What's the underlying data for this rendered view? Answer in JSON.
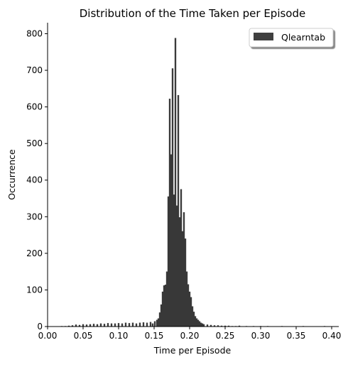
{
  "chart_data": {
    "type": "bar",
    "title": "Distribution of the Time Taken per Episode",
    "xlabel": "Time per Episode",
    "ylabel": "Occurrence",
    "xlim": [
      0.0,
      0.41
    ],
    "ylim": [
      0,
      830
    ],
    "xticks": [
      0.0,
      0.05,
      0.1,
      0.15,
      0.2,
      0.25,
      0.3,
      0.35,
      0.4
    ],
    "xtick_labels": [
      "0.00",
      "0.05",
      "0.10",
      "0.15",
      "0.20",
      "0.25",
      "0.30",
      "0.35",
      "0.40"
    ],
    "yticks": [
      0,
      100,
      200,
      300,
      400,
      500,
      600,
      700,
      800
    ],
    "ytick_labels": [
      "0",
      "100",
      "200",
      "300",
      "400",
      "500",
      "600",
      "700",
      "800"
    ],
    "grid": false,
    "legend_position": "top-right",
    "bar_color": "#404040",
    "edge_color": "#1a1a1a",
    "series": [
      {
        "name": "Qlearntab",
        "bins": [
          {
            "x": 0.02,
            "y": 1
          },
          {
            "x": 0.025,
            "y": 1
          },
          {
            "x": 0.03,
            "y": 2
          },
          {
            "x": 0.035,
            "y": 3
          },
          {
            "x": 0.04,
            "y": 5
          },
          {
            "x": 0.045,
            "y": 4
          },
          {
            "x": 0.05,
            "y": 6
          },
          {
            "x": 0.055,
            "y": 5
          },
          {
            "x": 0.06,
            "y": 6
          },
          {
            "x": 0.065,
            "y": 7
          },
          {
            "x": 0.07,
            "y": 6
          },
          {
            "x": 0.075,
            "y": 8
          },
          {
            "x": 0.08,
            "y": 7
          },
          {
            "x": 0.085,
            "y": 9
          },
          {
            "x": 0.09,
            "y": 8
          },
          {
            "x": 0.095,
            "y": 8
          },
          {
            "x": 0.1,
            "y": 9
          },
          {
            "x": 0.105,
            "y": 8
          },
          {
            "x": 0.11,
            "y": 10
          },
          {
            "x": 0.115,
            "y": 9
          },
          {
            "x": 0.12,
            "y": 10
          },
          {
            "x": 0.125,
            "y": 8
          },
          {
            "x": 0.13,
            "y": 10
          },
          {
            "x": 0.135,
            "y": 11
          },
          {
            "x": 0.14,
            "y": 10
          },
          {
            "x": 0.145,
            "y": 12
          },
          {
            "x": 0.148,
            "y": 8
          },
          {
            "x": 0.151,
            "y": 14
          },
          {
            "x": 0.154,
            "y": 18
          },
          {
            "x": 0.156,
            "y": 22
          },
          {
            "x": 0.158,
            "y": 38
          },
          {
            "x": 0.16,
            "y": 60
          },
          {
            "x": 0.162,
            "y": 95
          },
          {
            "x": 0.164,
            "y": 112
          },
          {
            "x": 0.166,
            "y": 114
          },
          {
            "x": 0.168,
            "y": 150
          },
          {
            "x": 0.17,
            "y": 355
          },
          {
            "x": 0.172,
            "y": 622
          },
          {
            "x": 0.174,
            "y": 470
          },
          {
            "x": 0.176,
            "y": 705
          },
          {
            "x": 0.178,
            "y": 360
          },
          {
            "x": 0.18,
            "y": 788
          },
          {
            "x": 0.182,
            "y": 330
          },
          {
            "x": 0.184,
            "y": 632
          },
          {
            "x": 0.186,
            "y": 298
          },
          {
            "x": 0.188,
            "y": 375
          },
          {
            "x": 0.19,
            "y": 260
          },
          {
            "x": 0.192,
            "y": 312
          },
          {
            "x": 0.194,
            "y": 240
          },
          {
            "x": 0.196,
            "y": 150
          },
          {
            "x": 0.198,
            "y": 115
          },
          {
            "x": 0.2,
            "y": 95
          },
          {
            "x": 0.202,
            "y": 80
          },
          {
            "x": 0.204,
            "y": 55
          },
          {
            "x": 0.206,
            "y": 40
          },
          {
            "x": 0.208,
            "y": 28
          },
          {
            "x": 0.21,
            "y": 22
          },
          {
            "x": 0.212,
            "y": 18
          },
          {
            "x": 0.214,
            "y": 14
          },
          {
            "x": 0.216,
            "y": 10
          },
          {
            "x": 0.218,
            "y": 8
          },
          {
            "x": 0.22,
            "y": 6
          },
          {
            "x": 0.225,
            "y": 5
          },
          {
            "x": 0.23,
            "y": 4
          },
          {
            "x": 0.235,
            "y": 3
          },
          {
            "x": 0.24,
            "y": 3
          },
          {
            "x": 0.245,
            "y": 2
          },
          {
            "x": 0.25,
            "y": 2
          },
          {
            "x": 0.255,
            "y": 2
          },
          {
            "x": 0.26,
            "y": 1
          },
          {
            "x": 0.265,
            "y": 1
          },
          {
            "x": 0.27,
            "y": 2
          },
          {
            "x": 0.28,
            "y": 1
          },
          {
            "x": 0.29,
            "y": 1
          },
          {
            "x": 0.3,
            "y": 1
          },
          {
            "x": 0.31,
            "y": 1
          },
          {
            "x": 0.33,
            "y": 1
          },
          {
            "x": 0.36,
            "y": 1
          },
          {
            "x": 0.39,
            "y": 1
          }
        ]
      }
    ]
  }
}
